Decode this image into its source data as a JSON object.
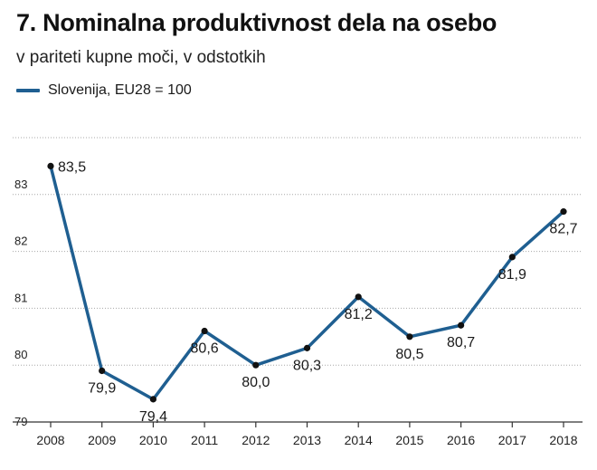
{
  "header": {
    "title": "7. Nominalna produktivnost dela na osebo",
    "subtitle": "v pariteti kupne moči, v odstotkih"
  },
  "colors": {
    "series": "#1f5f91",
    "grid": "#a8a8a8",
    "axis": "#333333"
  },
  "chart_data": {
    "type": "line",
    "title": "7. Nominalna produktivnost dela na osebo",
    "subtitle": "v pariteti kupne moči, v odstotkih",
    "xlabel": "",
    "ylabel": "",
    "x": [
      "2008",
      "2009",
      "2010",
      "2011",
      "2012",
      "2013",
      "2014",
      "2015",
      "2016",
      "2017",
      "2018"
    ],
    "series": [
      {
        "name": "Slovenija, EU28 = 100",
        "values": [
          83.5,
          79.9,
          79.4,
          80.6,
          80.0,
          80.3,
          81.2,
          80.5,
          80.7,
          81.9,
          82.7
        ],
        "labels": [
          "83,5",
          "79,9",
          "79,4",
          "80,6",
          "80,0",
          "80,3",
          "81,2",
          "80,5",
          "80,7",
          "81,9",
          "82,7"
        ]
      }
    ],
    "yticks": [
      79,
      80,
      81,
      82,
      83
    ],
    "ylim": [
      79,
      84
    ],
    "grid": true,
    "legend": "top-left"
  }
}
